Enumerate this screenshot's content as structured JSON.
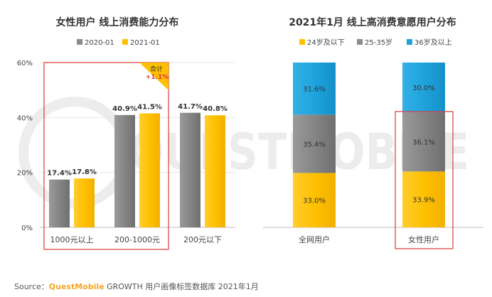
{
  "watermark": "QUESTMOBILE",
  "source": {
    "prefix": "Source：",
    "brand": "QuestMobile",
    "suffix": " GROWTH 用户画像标签数据库 2021年1月"
  },
  "chart_data": [
    {
      "type": "bar",
      "title": "女性用户  线上消费能力分布",
      "categories": [
        "1000元以上",
        "200-1000元",
        "200元以下"
      ],
      "series": [
        {
          "name": "2020-01",
          "values": [
            17.4,
            40.9,
            41.7
          ]
        },
        {
          "name": "2021-01",
          "values": [
            17.8,
            41.5,
            40.8
          ]
        }
      ],
      "data_labels": [
        [
          "17.4%",
          "40.9%",
          "41.7%"
        ],
        [
          "17.8%",
          "41.5%",
          "40.8%"
        ]
      ],
      "yticks": [
        "0%",
        "20%",
        "40%",
        "60%"
      ],
      "ylim": [
        0,
        60
      ],
      "legend": "top-center",
      "annotation": {
        "label": "合计",
        "value": "+1.1%"
      },
      "colors": [
        "#8c8c8c",
        "#ffc000"
      ]
    },
    {
      "type": "bar",
      "stacked": true,
      "title": "2021年1月  线上高消费意愿用户分布",
      "categories": [
        "全网用户",
        "女性用户"
      ],
      "series": [
        {
          "name": "24岁及以下",
          "values": [
            33.0,
            33.9
          ]
        },
        {
          "name": "25-35岁",
          "values": [
            35.4,
            36.1
          ]
        },
        {
          "name": "36岁及以上",
          "values": [
            31.6,
            30.0
          ]
        }
      ],
      "data_labels": [
        [
          "33.0%",
          "33.9%"
        ],
        [
          "35.4%",
          "36.1%"
        ],
        [
          "31.6%",
          "30.0%"
        ]
      ],
      "legend": "top-center",
      "colors": [
        "#ffc000",
        "#8c8c8c",
        "#1fa3dd"
      ]
    }
  ]
}
